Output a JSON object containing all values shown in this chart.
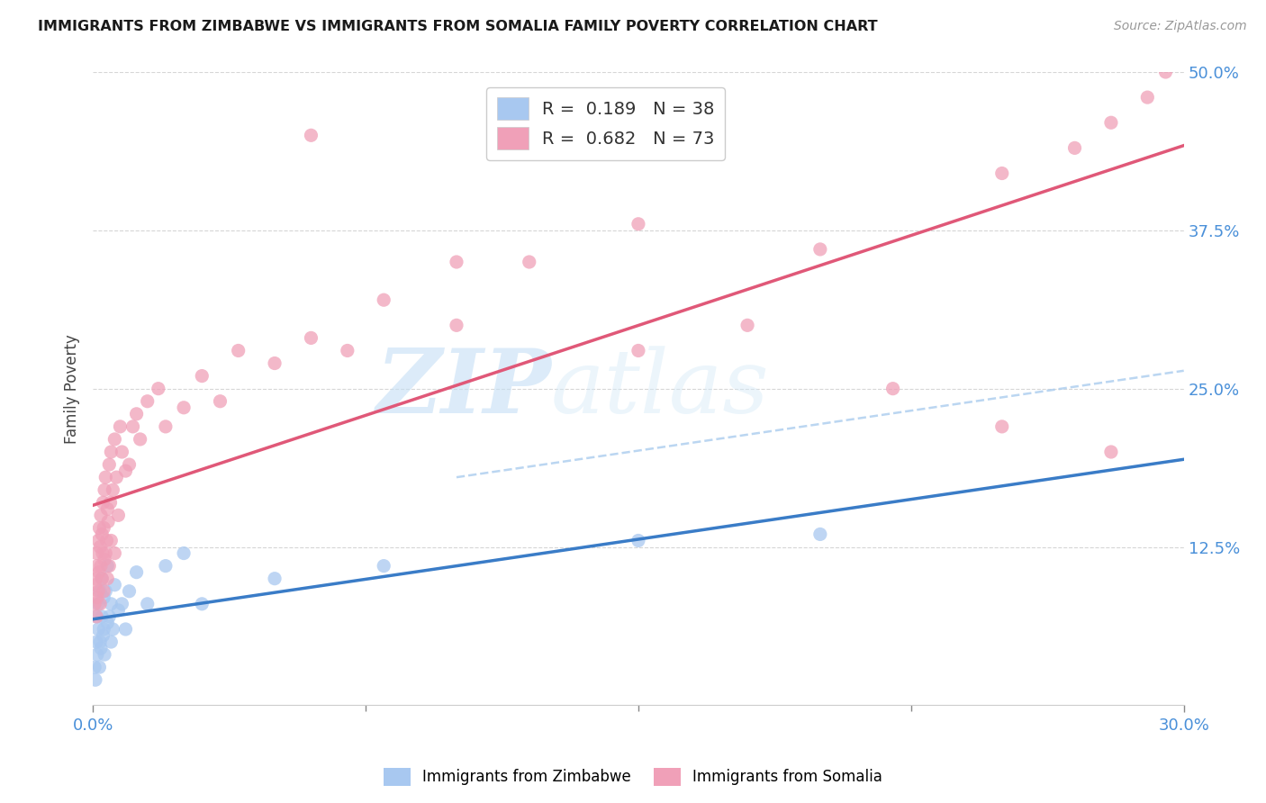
{
  "title": "IMMIGRANTS FROM ZIMBABWE VS IMMIGRANTS FROM SOMALIA FAMILY POVERTY CORRELATION CHART",
  "source": "Source: ZipAtlas.com",
  "ylabel": "Family Poverty",
  "x_min": 0.0,
  "x_max": 30.0,
  "y_min": 0.0,
  "y_max": 50.0,
  "y_ticks": [
    12.5,
    25.0,
    37.5,
    50.0
  ],
  "y_tick_labels": [
    "12.5%",
    "25.0%",
    "37.5%",
    "50.0%"
  ],
  "x_tick_labels": [
    "0.0%",
    "30.0%"
  ],
  "zimbabwe_color": "#a8c8f0",
  "somalia_color": "#f0a0b8",
  "zimbabwe_line_color": "#3a7cc7",
  "somalia_line_color": "#e05878",
  "zimbabwe_R": 0.189,
  "zimbabwe_N": 38,
  "somalia_R": 0.682,
  "somalia_N": 73,
  "watermark_zip": "ZIP",
  "watermark_atlas": "atlas",
  "legend_label_zimbabwe": "Immigrants from Zimbabwe",
  "legend_label_somalia": "Immigrants from Somalia",
  "title_color": "#1a1a1a",
  "axis_label_color": "#444444",
  "tick_color": "#4a90d9",
  "grid_color": "#cccccc",
  "zimbabwe_scatter_x": [
    0.05,
    0.07,
    0.1,
    0.1,
    0.12,
    0.15,
    0.15,
    0.18,
    0.2,
    0.2,
    0.22,
    0.25,
    0.25,
    0.28,
    0.3,
    0.3,
    0.32,
    0.35,
    0.4,
    0.4,
    0.45,
    0.5,
    0.5,
    0.55,
    0.6,
    0.7,
    0.8,
    0.9,
    1.0,
    1.2,
    1.5,
    2.0,
    2.5,
    3.0,
    5.0,
    8.0,
    15.0,
    20.0
  ],
  "zimbabwe_scatter_y": [
    3.0,
    2.0,
    5.0,
    7.0,
    4.0,
    6.0,
    8.0,
    3.0,
    5.0,
    9.0,
    4.5,
    7.0,
    10.0,
    5.5,
    6.0,
    8.5,
    4.0,
    9.0,
    6.5,
    11.0,
    7.0,
    5.0,
    8.0,
    6.0,
    9.5,
    7.5,
    8.0,
    6.0,
    9.0,
    10.5,
    8.0,
    11.0,
    12.0,
    8.0,
    10.0,
    11.0,
    13.0,
    13.5
  ],
  "somalia_scatter_x": [
    0.05,
    0.07,
    0.08,
    0.1,
    0.1,
    0.12,
    0.12,
    0.15,
    0.15,
    0.17,
    0.18,
    0.2,
    0.2,
    0.22,
    0.22,
    0.25,
    0.25,
    0.27,
    0.28,
    0.3,
    0.3,
    0.32,
    0.32,
    0.35,
    0.35,
    0.38,
    0.4,
    0.4,
    0.42,
    0.45,
    0.45,
    0.48,
    0.5,
    0.5,
    0.55,
    0.6,
    0.6,
    0.65,
    0.7,
    0.75,
    0.8,
    0.9,
    1.0,
    1.1,
    1.2,
    1.3,
    1.5,
    1.8,
    2.0,
    2.5,
    3.0,
    3.5,
    4.0,
    5.0,
    6.0,
    7.0,
    8.0,
    10.0,
    12.0,
    15.0,
    18.0,
    20.0,
    25.0,
    27.0,
    28.0,
    29.0,
    29.5,
    6.0,
    10.0,
    15.0,
    22.0,
    25.0,
    28.0
  ],
  "somalia_scatter_y": [
    8.0,
    9.5,
    10.0,
    7.0,
    12.0,
    8.5,
    11.0,
    9.0,
    13.0,
    10.5,
    14.0,
    8.0,
    12.5,
    11.0,
    15.0,
    10.0,
    13.5,
    12.0,
    16.0,
    9.0,
    14.0,
    11.5,
    17.0,
    12.0,
    18.0,
    13.0,
    10.0,
    15.5,
    14.5,
    11.0,
    19.0,
    16.0,
    13.0,
    20.0,
    17.0,
    12.0,
    21.0,
    18.0,
    15.0,
    22.0,
    20.0,
    18.5,
    19.0,
    22.0,
    23.0,
    21.0,
    24.0,
    25.0,
    22.0,
    23.5,
    26.0,
    24.0,
    28.0,
    27.0,
    29.0,
    28.0,
    32.0,
    30.0,
    35.0,
    38.0,
    30.0,
    36.0,
    42.0,
    44.0,
    46.0,
    48.0,
    50.0,
    45.0,
    35.0,
    28.0,
    25.0,
    22.0,
    20.0
  ]
}
